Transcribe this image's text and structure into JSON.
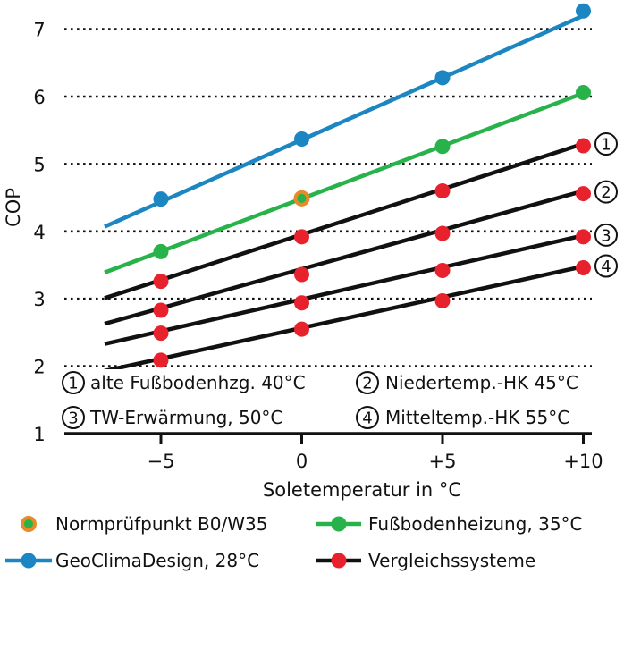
{
  "chart_data": {
    "type": "line",
    "xlabel": "Soletemperatur in °C",
    "ylabel": "COP",
    "xlim": [
      -8.5,
      10.5
    ],
    "ylim": [
      1,
      7.4
    ],
    "x_ticks": [
      {
        "value": -5,
        "label": "−5"
      },
      {
        "value": 0,
        "label": "0"
      },
      {
        "value": 5,
        "label": "+5"
      },
      {
        "value": 10,
        "label": "+10"
      }
    ],
    "y_ticks": [
      1,
      2,
      3,
      4,
      5,
      6,
      7
    ],
    "y_gridlines": [
      2,
      3,
      4,
      5,
      6,
      7
    ],
    "series": [
      {
        "name": "GeoClimaDesign,  28°C",
        "color": "#1b86c2",
        "kind": "main",
        "line_x": [
          -7,
          10
        ],
        "line_y": [
          4.07,
          7.2
        ],
        "points": [
          {
            "x": -5,
            "y": 4.48
          },
          {
            "x": 0,
            "y": 5.37
          },
          {
            "x": 5,
            "y": 6.28
          },
          {
            "x": 10,
            "y": 7.27
          }
        ]
      },
      {
        "name": "Fußbodenheizung, 35°C",
        "color": "#28b34a",
        "kind": "main",
        "line_x": [
          -7,
          10
        ],
        "line_y": [
          3.39,
          6.05
        ],
        "points": [
          {
            "x": -5,
            "y": 3.7
          },
          {
            "x": 0,
            "y": 4.49
          },
          {
            "x": 5,
            "y": 5.26
          },
          {
            "x": 10,
            "y": 6.06
          }
        ]
      },
      {
        "label": "1",
        "color": "#111111",
        "point_color": "#e8222c",
        "kind": "compare",
        "line_x": [
          -7,
          10
        ],
        "line_y": [
          3.01,
          5.3
        ],
        "points": [
          {
            "x": -5,
            "y": 3.26
          },
          {
            "x": 0,
            "y": 3.92
          },
          {
            "x": 5,
            "y": 4.6
          },
          {
            "x": 10,
            "y": 5.27
          }
        ]
      },
      {
        "label": "2",
        "color": "#111111",
        "point_color": "#e8222c",
        "kind": "compare",
        "line_x": [
          -7,
          10
        ],
        "line_y": [
          2.63,
          4.6
        ],
        "points": [
          {
            "x": -5,
            "y": 2.83
          },
          {
            "x": 0,
            "y": 3.36
          },
          {
            "x": 5,
            "y": 3.97
          },
          {
            "x": 10,
            "y": 4.56
          }
        ]
      },
      {
        "label": "3",
        "color": "#111111",
        "point_color": "#e8222c",
        "kind": "compare",
        "line_x": [
          -7,
          10
        ],
        "line_y": [
          2.33,
          3.94
        ],
        "points": [
          {
            "x": -5,
            "y": 2.49
          },
          {
            "x": 0,
            "y": 2.94
          },
          {
            "x": 5,
            "y": 3.42
          },
          {
            "x": 10,
            "y": 3.92
          }
        ]
      },
      {
        "label": "4",
        "color": "#111111",
        "point_color": "#e8222c",
        "kind": "compare",
        "line_x": [
          -7,
          10
        ],
        "line_y": [
          1.93,
          3.48
        ],
        "points": [
          {
            "x": -5,
            "y": 2.09
          },
          {
            "x": 0,
            "y": 2.55
          },
          {
            "x": 5,
            "y": 2.97
          },
          {
            "x": 10,
            "y": 3.46
          }
        ]
      }
    ],
    "norm_point": {
      "x": 0,
      "y": 4.49,
      "fill": "#28b34a",
      "ring": "#e88a2a"
    },
    "annotations": [
      {
        "num": "1",
        "text": "alte Fußbodenhzg. 40°C"
      },
      {
        "num": "2",
        "text": "Niedertemp.-HK 45°C"
      },
      {
        "num": "3",
        "text": "TW-Erwärmung, 50°C"
      },
      {
        "num": "4",
        "text": "Mitteltemp.-HK 55°C"
      }
    ],
    "legend": [
      {
        "type": "norm",
        "label": "Normprüfpunkt B0/W35"
      },
      {
        "type": "line",
        "label": "Fußbodenheizung, 35°C",
        "line_color": "#28b34a",
        "dot_color": "#28b34a"
      },
      {
        "type": "line",
        "label": "GeoClimaDesign,  28°C",
        "line_color": "#1b86c2",
        "dot_color": "#1b86c2"
      },
      {
        "type": "line",
        "label": "Vergleichssysteme",
        "line_color": "#111111",
        "dot_color": "#e8222c"
      }
    ]
  }
}
